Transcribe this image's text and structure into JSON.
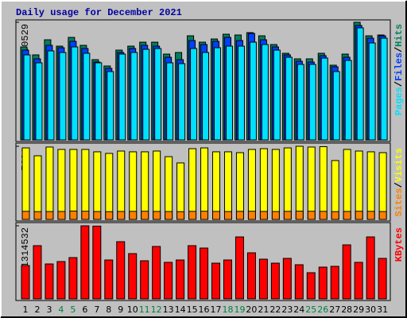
{
  "legend_separator": "/",
  "chart_data": [
    {
      "type": "bar",
      "title": "Daily usage for December 2021",
      "ylim": [
        0,
        80529
      ],
      "yticks": [
        80529
      ],
      "series": [
        {
          "name": "Hits",
          "color": "#00805c",
          "values": [
            63650,
            58210,
            68540,
            64190,
            70180,
            64740,
            54940,
            50590,
            61470,
            64190,
            66910,
            66910,
            58750,
            59840,
            71260,
            66910,
            69090,
            72350,
            71810,
            73440,
            71260,
            65280,
            59300,
            55490,
            55490,
            59300,
            51140,
            58750,
            80529,
            71260,
            71810
          ]
        },
        {
          "name": "Files",
          "color": "#0040ff",
          "values": [
            61470,
            55490,
            64740,
            63100,
            67460,
            62560,
            53310,
            48960,
            59840,
            62560,
            64740,
            64190,
            56580,
            54940,
            68000,
            65280,
            67460,
            70180,
            68000,
            72900,
            68540,
            63650,
            58210,
            53860,
            53310,
            57660,
            50050,
            56580,
            78340,
            69630,
            71260
          ]
        },
        {
          "name": "Pages",
          "color": "#00e0ff",
          "values": [
            58210,
            52770,
            60930,
            59840,
            63650,
            59300,
            52770,
            46780,
            58750,
            59840,
            62020,
            62560,
            52770,
            52220,
            62560,
            59840,
            63100,
            64190,
            64190,
            66910,
            65280,
            61470,
            56580,
            51680,
            51680,
            56030,
            46780,
            54400,
            76700,
            66370,
            69630
          ]
        }
      ]
    },
    {
      "type": "bar",
      "ylim": [
        0,
        7691
      ],
      "yticks": [
        7691
      ],
      "series": [
        {
          "name": "Visits",
          "color": "#ffff00",
          "values": [
            7520,
            6690,
            7610,
            7360,
            7360,
            7360,
            7110,
            6940,
            7190,
            7110,
            7110,
            7190,
            6600,
            5940,
            7440,
            7520,
            7110,
            7110,
            7020,
            7360,
            7440,
            7360,
            7520,
            7691,
            7610,
            7650,
            6190,
            7360,
            7190,
            7110,
            7020
          ]
        },
        {
          "name": "Sites",
          "color": "#ff8000",
          "values": [
            850,
            820,
            830,
            840,
            880,
            860,
            830,
            820,
            840,
            850,
            860,
            840,
            830,
            820,
            850,
            860,
            840,
            830,
            850,
            860,
            840,
            830,
            850,
            870,
            860,
            850,
            820,
            840,
            860,
            850,
            830
          ]
        }
      ]
    },
    {
      "type": "bar",
      "ylim": [
        0,
        1314532
      ],
      "yticks": [
        1314532
      ],
      "categories": [
        "1",
        "2",
        "3",
        "4",
        "5",
        "6",
        "7",
        "8",
        "9",
        "10",
        "11",
        "12",
        "13",
        "14",
        "15",
        "16",
        "17",
        "18",
        "19",
        "20",
        "21",
        "22",
        "23",
        "24",
        "25",
        "26",
        "27",
        "28",
        "29",
        "30",
        "31"
      ],
      "category_colors": [
        "#000000",
        "#000000",
        "#000000",
        "#008040",
        "#008040",
        "#000000",
        "#000000",
        "#000000",
        "#000000",
        "#000000",
        "#008040",
        "#008040",
        "#000000",
        "#000000",
        "#000000",
        "#000000",
        "#000000",
        "#008040",
        "#008040",
        "#000000",
        "#000000",
        "#000000",
        "#000000",
        "#000000",
        "#008040",
        "#008040",
        "#000000",
        "#000000",
        "#000000",
        "#000000",
        "#000000"
      ],
      "series": [
        {
          "name": "KBytes",
          "color": "#ff0000",
          "values": [
            600100,
            957300,
            628700,
            671500,
            743000,
            1314532,
            1309000,
            700100,
            1028700,
            814400,
            685800,
            943000,
            657200,
            700100,
            957300,
            914400,
            643000,
            700100,
            1114500,
            828700,
            714400,
            643000,
            728700,
            614400,
            471500,
            571500,
            585800,
            971600,
            657200,
            1114500,
            728700
          ]
        }
      ]
    }
  ]
}
